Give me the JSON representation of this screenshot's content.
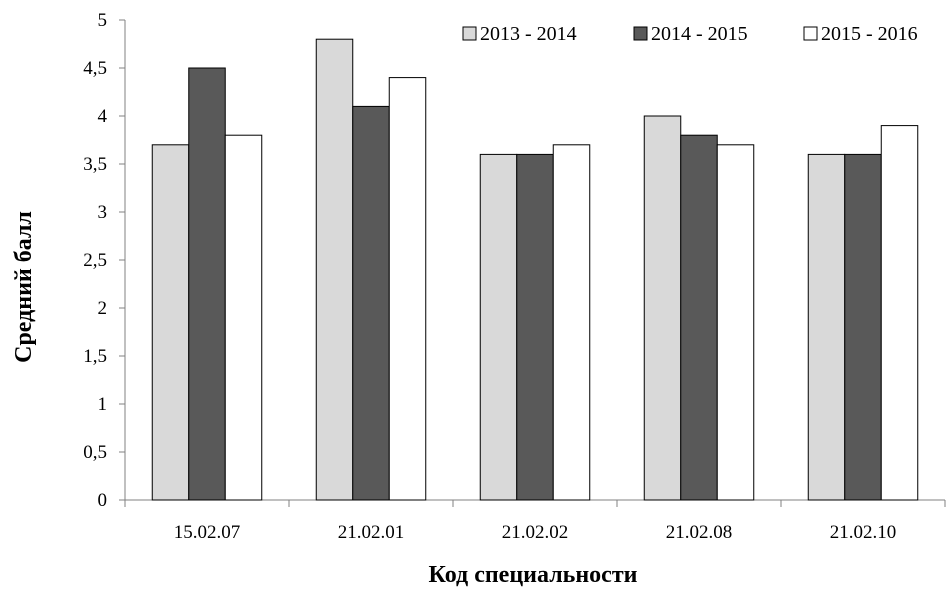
{
  "chart_data": {
    "type": "bar",
    "categories": [
      "15.02.07",
      "21.02.01",
      "21.02.02",
      "21.02.08",
      "21.02.10"
    ],
    "series": [
      {
        "name": "2013 - 2014",
        "values": [
          3.7,
          4.8,
          3.6,
          4.0,
          3.6
        ],
        "color": "#d9d9d9"
      },
      {
        "name": "2014 - 2015",
        "values": [
          4.5,
          4.1,
          3.6,
          3.8,
          3.6
        ],
        "color": "#595959"
      },
      {
        "name": "2015 - 2016",
        "values": [
          3.8,
          4.4,
          3.7,
          3.7,
          3.9
        ],
        "color": "#ffffff"
      }
    ],
    "yticks": [
      "0",
      "0,5",
      "1",
      "1,5",
      "2",
      "2,5",
      "3",
      "3,5",
      "4",
      "4,5",
      "5"
    ],
    "ylim": [
      0,
      5
    ],
    "xlabel": "Код специальности",
    "ylabel": "Средний балл",
    "legend_position": "top-right",
    "grid": false
  }
}
